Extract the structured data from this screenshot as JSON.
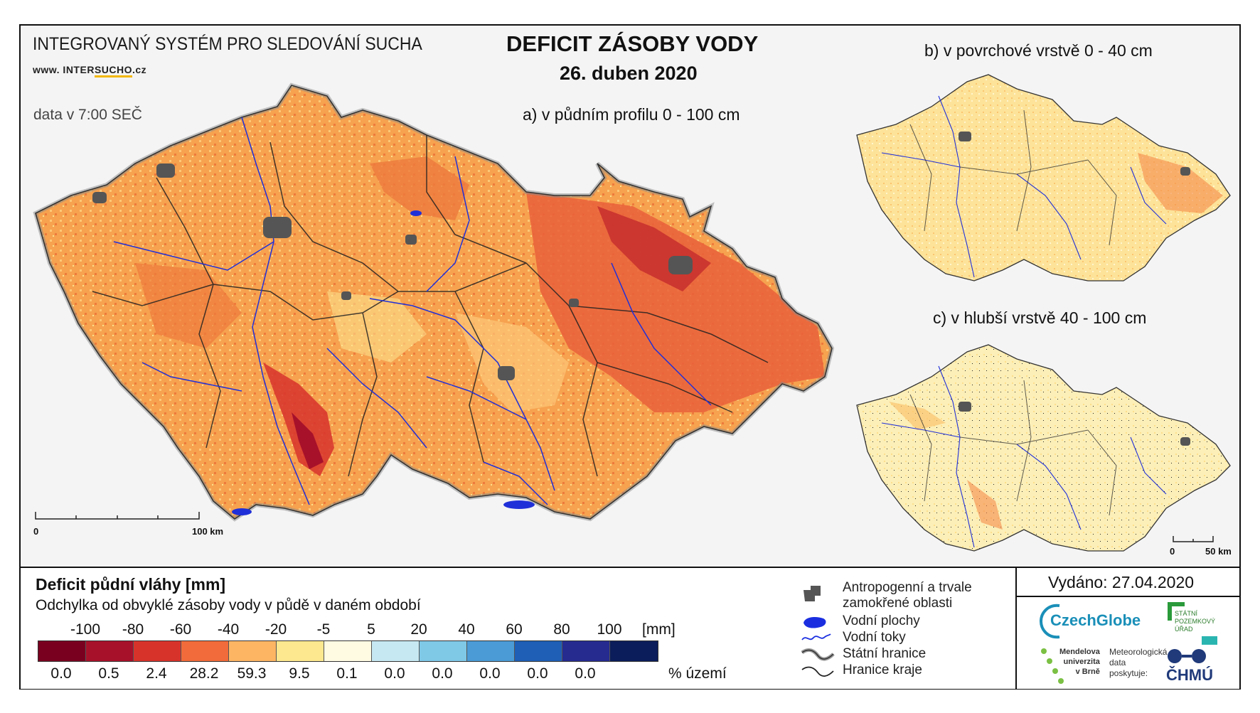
{
  "header": {
    "system_title": "INTEGROVANÝ SYSTÉM PRO SLEDOVÁNÍ SUCHA",
    "website_prefix": "www. INTER",
    "website_highlight": "SUCHO",
    "website_suffix": ".cz",
    "data_time": "data v 7:00 SEČ",
    "main_title": "DEFICIT ZÁSOBY VODY",
    "date": "26. duben 2020"
  },
  "maps": {
    "a_title": "a) v půdním profilu 0 - 100 cm",
    "b_title": "b) v povrchové vrstvě 0 - 40 cm",
    "c_title": "c) v hlubší vrstvě 40 - 100 cm",
    "scale_a": {
      "start": "0",
      "end": "100 km"
    },
    "scale_c": {
      "start": "0",
      "end": "50 km"
    }
  },
  "legend": {
    "title": "Deficit půdní vláhy  [mm]",
    "subtitle": "Odchylka od obvyklé zásoby vody v půdě v daném období",
    "ticks": [
      "-100",
      "-80",
      "-60",
      "-40",
      "-20",
      "-5",
      "5",
      "20",
      "40",
      "60",
      "80",
      "100"
    ],
    "unit": "[mm]",
    "bins": [
      {
        "color": "#7a0020",
        "percent": "0.0"
      },
      {
        "color": "#a8112a",
        "percent": "0.5"
      },
      {
        "color": "#d7332b",
        "percent": "2.4"
      },
      {
        "color": "#f26b3a",
        "percent": "28.2"
      },
      {
        "color": "#fdb564",
        "percent": "59.3"
      },
      {
        "color": "#fde88f",
        "percent": "9.5"
      },
      {
        "color": "#fffbe3",
        "percent": "0.1"
      },
      {
        "color": "#c6e8f2",
        "percent": "0.0"
      },
      {
        "color": "#7fc8e6",
        "percent": "0.0"
      },
      {
        "color": "#4a9bd6",
        "percent": "0.0"
      },
      {
        "color": "#1f5fb5",
        "percent": "0.0"
      },
      {
        "color": "#252b8f",
        "percent": "0.0"
      },
      {
        "color": "#0b1d5a",
        "percent": ""
      }
    ],
    "percent_label": "% území"
  },
  "map_legend": {
    "anthropogenic_1": "Antropogenní a trvale",
    "anthropogenic_2": "zamokřené oblasti",
    "water_bodies": "Vodní plochy",
    "rivers": "Vodní toky",
    "state_border": "Státní hranice",
    "region_border": "Hranice kraje"
  },
  "footer": {
    "issued": "Vydáno: 27.04.2020",
    "czechglobe": "CzechGlobe",
    "spu_1": "STÁTNÍ",
    "spu_2": "POZEMKOVÝ",
    "spu_3": "ÚŘAD",
    "mendel_1": "Mendelova",
    "mendel_2": "univerzita",
    "mendel_3": "v Brně",
    "meteo_1": "Meteorologická",
    "meteo_2": "data",
    "meteo_3": "poskytuje:",
    "chmu": "ČHMÚ"
  }
}
